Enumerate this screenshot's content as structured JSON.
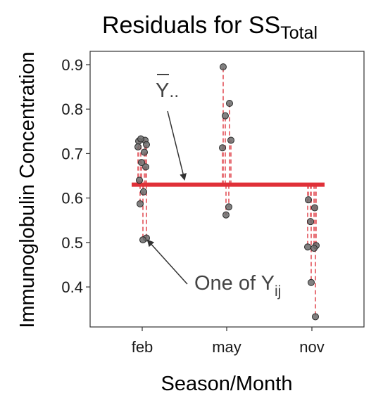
{
  "chart_data": {
    "type": "scatter",
    "title": "Residuals for SS",
    "title_subscript": "Total",
    "xlabel": "Season/Month",
    "ylabel": "Immunoglobulin Concentration",
    "categories": [
      "feb",
      "may",
      "nov"
    ],
    "ylim": [
      0.31,
      0.93
    ],
    "yticks": [
      0.4,
      0.5,
      0.6,
      0.7,
      0.8,
      0.9
    ],
    "grand_mean": 0.63,
    "colors": {
      "point_fill": "#6b6b6b",
      "point_stroke": "#2a2a2a",
      "residual_line": "#e8747a",
      "mean_line": "#e03038",
      "annotation": "#333333"
    },
    "series": [
      {
        "category": "feb",
        "values": [
          0.728,
          0.73,
          0.733,
          0.72,
          0.715,
          0.703,
          0.68,
          0.67,
          0.64,
          0.614,
          0.587,
          0.51,
          0.506
        ]
      },
      {
        "category": "may",
        "values": [
          0.895,
          0.813,
          0.785,
          0.73,
          0.713,
          0.58,
          0.562
        ]
      },
      {
        "category": "nov",
        "values": [
          0.596,
          0.578,
          0.547,
          0.493,
          0.49,
          0.487,
          0.41,
          0.333
        ]
      }
    ],
    "annotations": [
      {
        "label": "Y",
        "suffix": "..",
        "overline": true
      },
      {
        "label": "One of Y",
        "subscript": "ij"
      }
    ]
  }
}
